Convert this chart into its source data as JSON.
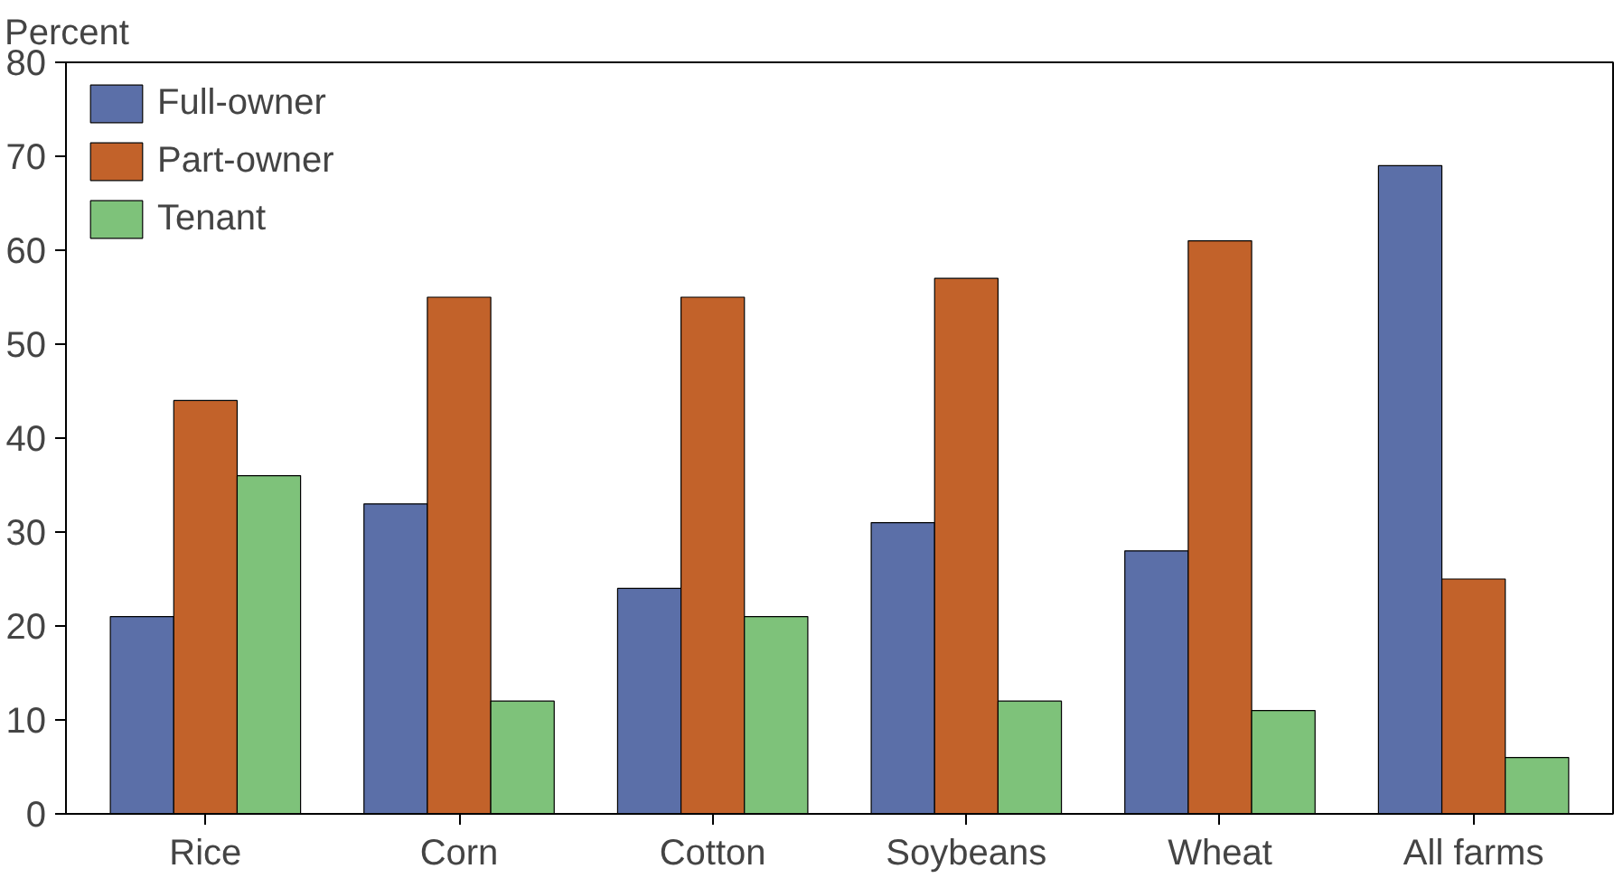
{
  "chart_data": {
    "type": "bar",
    "ylabel": "Percent",
    "categories": [
      "Rice",
      "Corn",
      "Cotton",
      "Soybeans",
      "Wheat",
      "All farms"
    ],
    "series": [
      {
        "name": "Full-owner",
        "color": "#5b6fa8",
        "values": [
          21,
          33,
          24,
          31,
          28,
          69
        ]
      },
      {
        "name": "Part-owner",
        "color": "#c2622a",
        "values": [
          44,
          55,
          55,
          57,
          61,
          25
        ]
      },
      {
        "name": "Tenant",
        "color": "#7ec27a",
        "values": [
          36,
          12,
          21,
          12,
          11,
          6
        ]
      }
    ],
    "ylim": [
      0,
      80
    ],
    "yticks": [
      0,
      10,
      20,
      30,
      40,
      50,
      60,
      70,
      80
    ],
    "grid": false,
    "legend": "top left"
  }
}
